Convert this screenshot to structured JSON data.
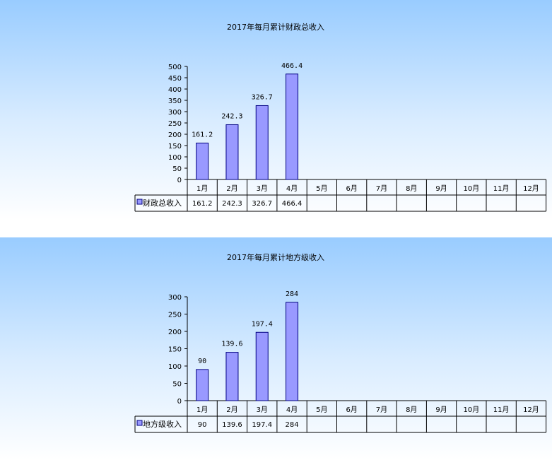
{
  "colors": {
    "bar": "#9999ff",
    "bar_stroke": "#000080",
    "table_line": "#000000"
  },
  "chart_data": [
    {
      "type": "bar",
      "title": "2017年每月累计财政总收入",
      "categories": [
        "1月",
        "2月",
        "3月",
        "4月",
        "5月",
        "6月",
        "7月",
        "8月",
        "9月",
        "10月",
        "11月",
        "12月"
      ],
      "series": [
        {
          "name": "财政总收入",
          "values": [
            161.2,
            242.3,
            326.7,
            466.4,
            null,
            null,
            null,
            null,
            null,
            null,
            null,
            null
          ],
          "labels": [
            "161.2",
            "242.3",
            "326.7",
            "466.4",
            "",
            "",
            "",
            "",
            "",
            "",
            "",
            ""
          ]
        }
      ],
      "ylim": [
        0,
        500
      ],
      "yticks": [
        "0",
        "50",
        "100",
        "150",
        "200",
        "250",
        "300",
        "350",
        "400",
        "450",
        "500"
      ],
      "legend_position": "data-table"
    },
    {
      "type": "bar",
      "title": "2017年每月累计地方级收入",
      "categories": [
        "1月",
        "2月",
        "3月",
        "4月",
        "5月",
        "6月",
        "7月",
        "8月",
        "9月",
        "10月",
        "11月",
        "12月"
      ],
      "series": [
        {
          "name": "地方级收入",
          "values": [
            90,
            139.6,
            197.4,
            284,
            null,
            null,
            null,
            null,
            null,
            null,
            null,
            null
          ],
          "labels": [
            "90",
            "139.6",
            "197.4",
            "284",
            "",
            "",
            "",
            "",
            "",
            "",
            "",
            ""
          ]
        }
      ],
      "ylim": [
        0,
        300
      ],
      "yticks": [
        "0",
        "50",
        "100",
        "150",
        "200",
        "250",
        "300"
      ],
      "legend_position": "data-table"
    }
  ]
}
